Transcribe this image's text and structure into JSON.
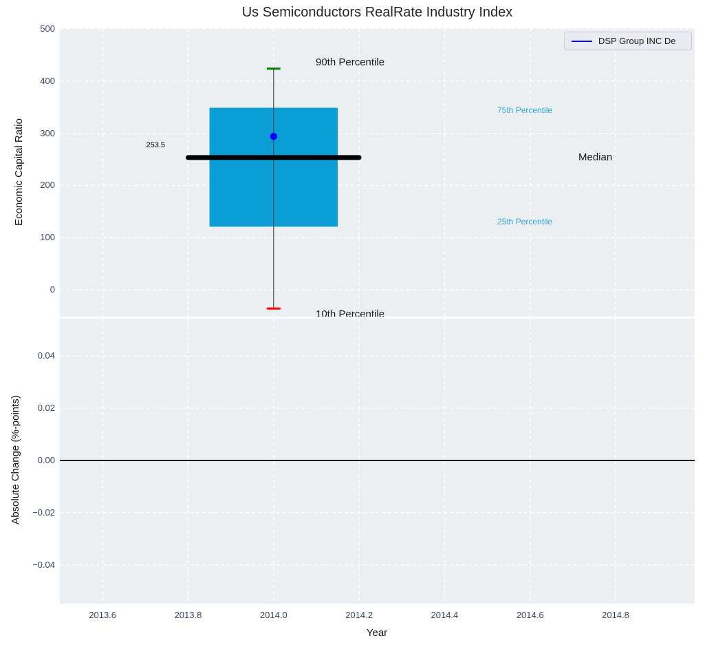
{
  "title": "Us Semiconductors RealRate Industry Index",
  "legend": {
    "label": "DSP Group INC De"
  },
  "colors": {
    "figure_bg": "#ffffff",
    "axes_bg": "#eceff1",
    "grid": "#ffffff",
    "tick_label": "#37475f",
    "box_fill": "#0a9ed5",
    "whisker": "#4a4a4a",
    "cap_upper": "#007f00",
    "cap_lower": "#ff0000",
    "median_line": "#000000",
    "company_dot": "#0000ff",
    "legend_line": "#0000ff",
    "percentile_label": "#2da7d9",
    "annotation_dark": "#1a1a1a",
    "zero_line": "#000000"
  },
  "chart_data": [
    {
      "type": "boxplot",
      "title": "Us Semiconductors RealRate Industry Index",
      "ylabel": "Economic Capital Ratio",
      "ylim": [
        -51.5,
        501.5
      ],
      "yticks": [
        {
          "v": 0,
          "label": "0"
        },
        {
          "v": 100,
          "label": "100"
        },
        {
          "v": 200,
          "label": "200"
        },
        {
          "v": 300,
          "label": "300"
        },
        {
          "v": 400,
          "label": "400"
        },
        {
          "v": 500,
          "label": "500"
        }
      ],
      "grid": true,
      "legend_position": "upper right",
      "series_name": "DSP Group INC De",
      "box": {
        "x": 2014.0,
        "p10": -36,
        "p25": 121,
        "median": 253.5,
        "p75": 349,
        "p90": 424,
        "company_value": 294,
        "box_halfwidth": 0.15,
        "median_halfwidth": 0.2,
        "cap_halfwidth": 0.016
      },
      "annotations": [
        {
          "text": "253.5"
        },
        {
          "text": "90th Percentile"
        },
        {
          "text": "75th Percentile"
        },
        {
          "text": "Median"
        },
        {
          "text": "25th Percentile"
        },
        {
          "text": "10th Percentile"
        }
      ]
    },
    {
      "type": "line",
      "ylabel": "Absolute Change (%-points)",
      "xlabel": "Year",
      "ylim": [
        -0.0548,
        0.0543
      ],
      "yticks": [
        {
          "v": 0.04,
          "label": "0.04"
        },
        {
          "v": 0.02,
          "label": "0.02"
        },
        {
          "v": 0.0,
          "label": "0.00"
        },
        {
          "v": -0.02,
          "label": "−0.02"
        },
        {
          "v": -0.04,
          "label": "−0.04"
        }
      ],
      "xlim": [
        2013.5,
        2014.985
      ],
      "xticks": [
        {
          "v": 2013.6,
          "label": "2013.6"
        },
        {
          "v": 2013.8,
          "label": "2013.8"
        },
        {
          "v": 2014.0,
          "label": "2014.0"
        },
        {
          "v": 2014.2,
          "label": "2014.2"
        },
        {
          "v": 2014.4,
          "label": "2014.4"
        },
        {
          "v": 2014.6,
          "label": "2014.6"
        },
        {
          "v": 2014.8,
          "label": "2014.8"
        }
      ],
      "zero_line": 0.0,
      "grid": true,
      "series": [
        {
          "name": "DSP Group INC De",
          "color": "#0000ff",
          "x": [],
          "y": []
        }
      ]
    }
  ]
}
